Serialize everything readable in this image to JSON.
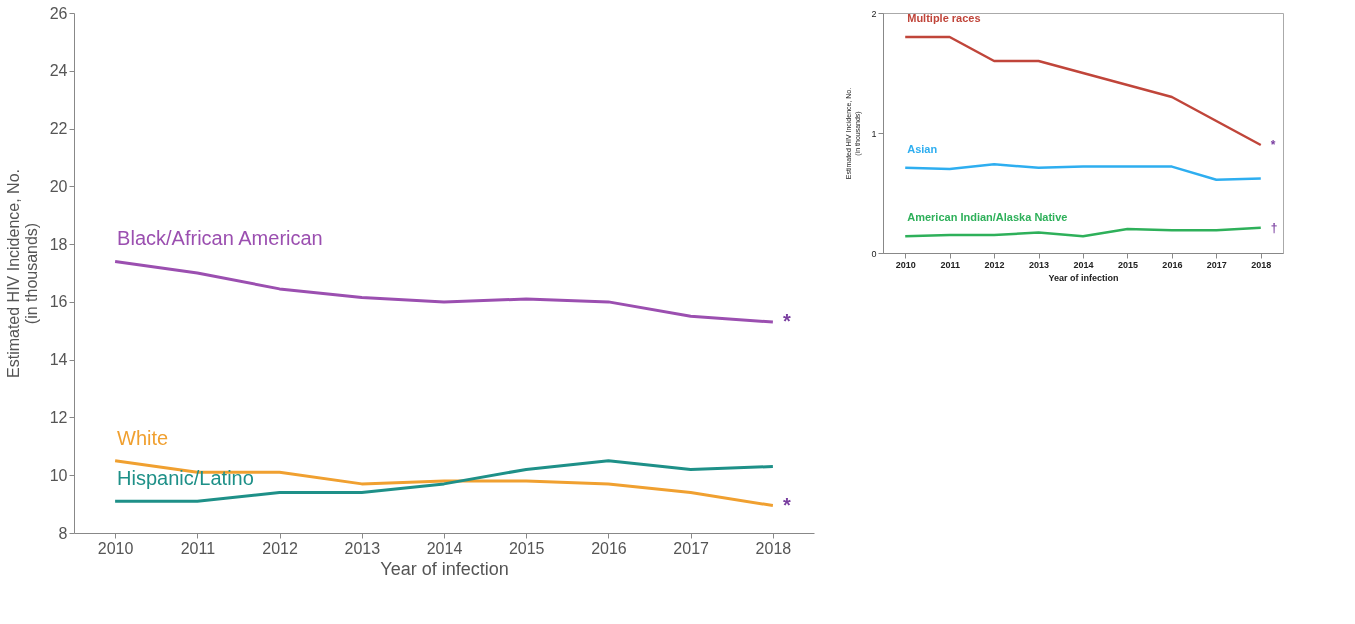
{
  "chart_data": [
    {
      "type": "line",
      "xlabel": "Year of infection",
      "ylabel": "Estimated HIV Incidence, No.\n(in thousands)",
      "categories": [
        "2010",
        "2011",
        "2012",
        "2013",
        "2014",
        "2015",
        "2016",
        "2017",
        "2018"
      ],
      "ylim": [
        8,
        26
      ],
      "yticks": [
        8,
        10,
        12,
        14,
        16,
        18,
        20,
        22,
        24,
        26
      ],
      "grid": false,
      "legend": false,
      "line_style": "solid",
      "marker": "none",
      "series": [
        {
          "name": "Black/African American",
          "color": "#9b4fb0",
          "values": [
            17.4,
            17.0,
            16.45,
            16.15,
            16.0,
            16.1,
            16.0,
            15.5,
            15.3
          ]
        },
        {
          "name": "White",
          "color": "#f0a030",
          "values": [
            10.5,
            10.1,
            10.1,
            9.7,
            9.8,
            9.8,
            9.7,
            9.4,
            8.95
          ]
        },
        {
          "name": "Hispanic/Latino",
          "color": "#1e9088",
          "values": [
            9.1,
            9.1,
            9.4,
            9.4,
            9.7,
            10.2,
            10.5,
            10.2,
            10.3
          ]
        }
      ],
      "annotations": [
        {
          "text": "*",
          "x": "2018",
          "y": 15.3
        },
        {
          "text": "*",
          "x": "2018",
          "y": 8.95
        }
      ]
    },
    {
      "type": "line",
      "xlabel": "Year of infection",
      "ylabel": "Estimated HIV Incidence, No.\n(in thousands)",
      "categories": [
        "2010",
        "2011",
        "2012",
        "2013",
        "2014",
        "2015",
        "2016",
        "2017",
        "2018"
      ],
      "ylim": [
        0,
        2
      ],
      "yticks": [
        0,
        1,
        2
      ],
      "grid": false,
      "legend": false,
      "line_style": "solid",
      "marker": "none",
      "series": [
        {
          "name": "Multiple races",
          "color": "#c0453a",
          "values": [
            1.8,
            1.8,
            1.6,
            1.6,
            1.5,
            1.4,
            1.3,
            1.1,
            0.9
          ]
        },
        {
          "name": "Asian",
          "color": "#2eaef0",
          "values": [
            0.71,
            0.7,
            0.74,
            0.71,
            0.72,
            0.72,
            0.72,
            0.61,
            0.62
          ]
        },
        {
          "name": "American Indian/Alaska Native",
          "color": "#2eb05a",
          "values": [
            0.14,
            0.15,
            0.15,
            0.17,
            0.14,
            0.2,
            0.19,
            0.19,
            0.21
          ]
        }
      ],
      "annotations": [
        {
          "text": "*",
          "x": "2018",
          "y": 0.9
        },
        {
          "text": "†",
          "x": "2018",
          "y": 0.21
        }
      ]
    }
  ]
}
